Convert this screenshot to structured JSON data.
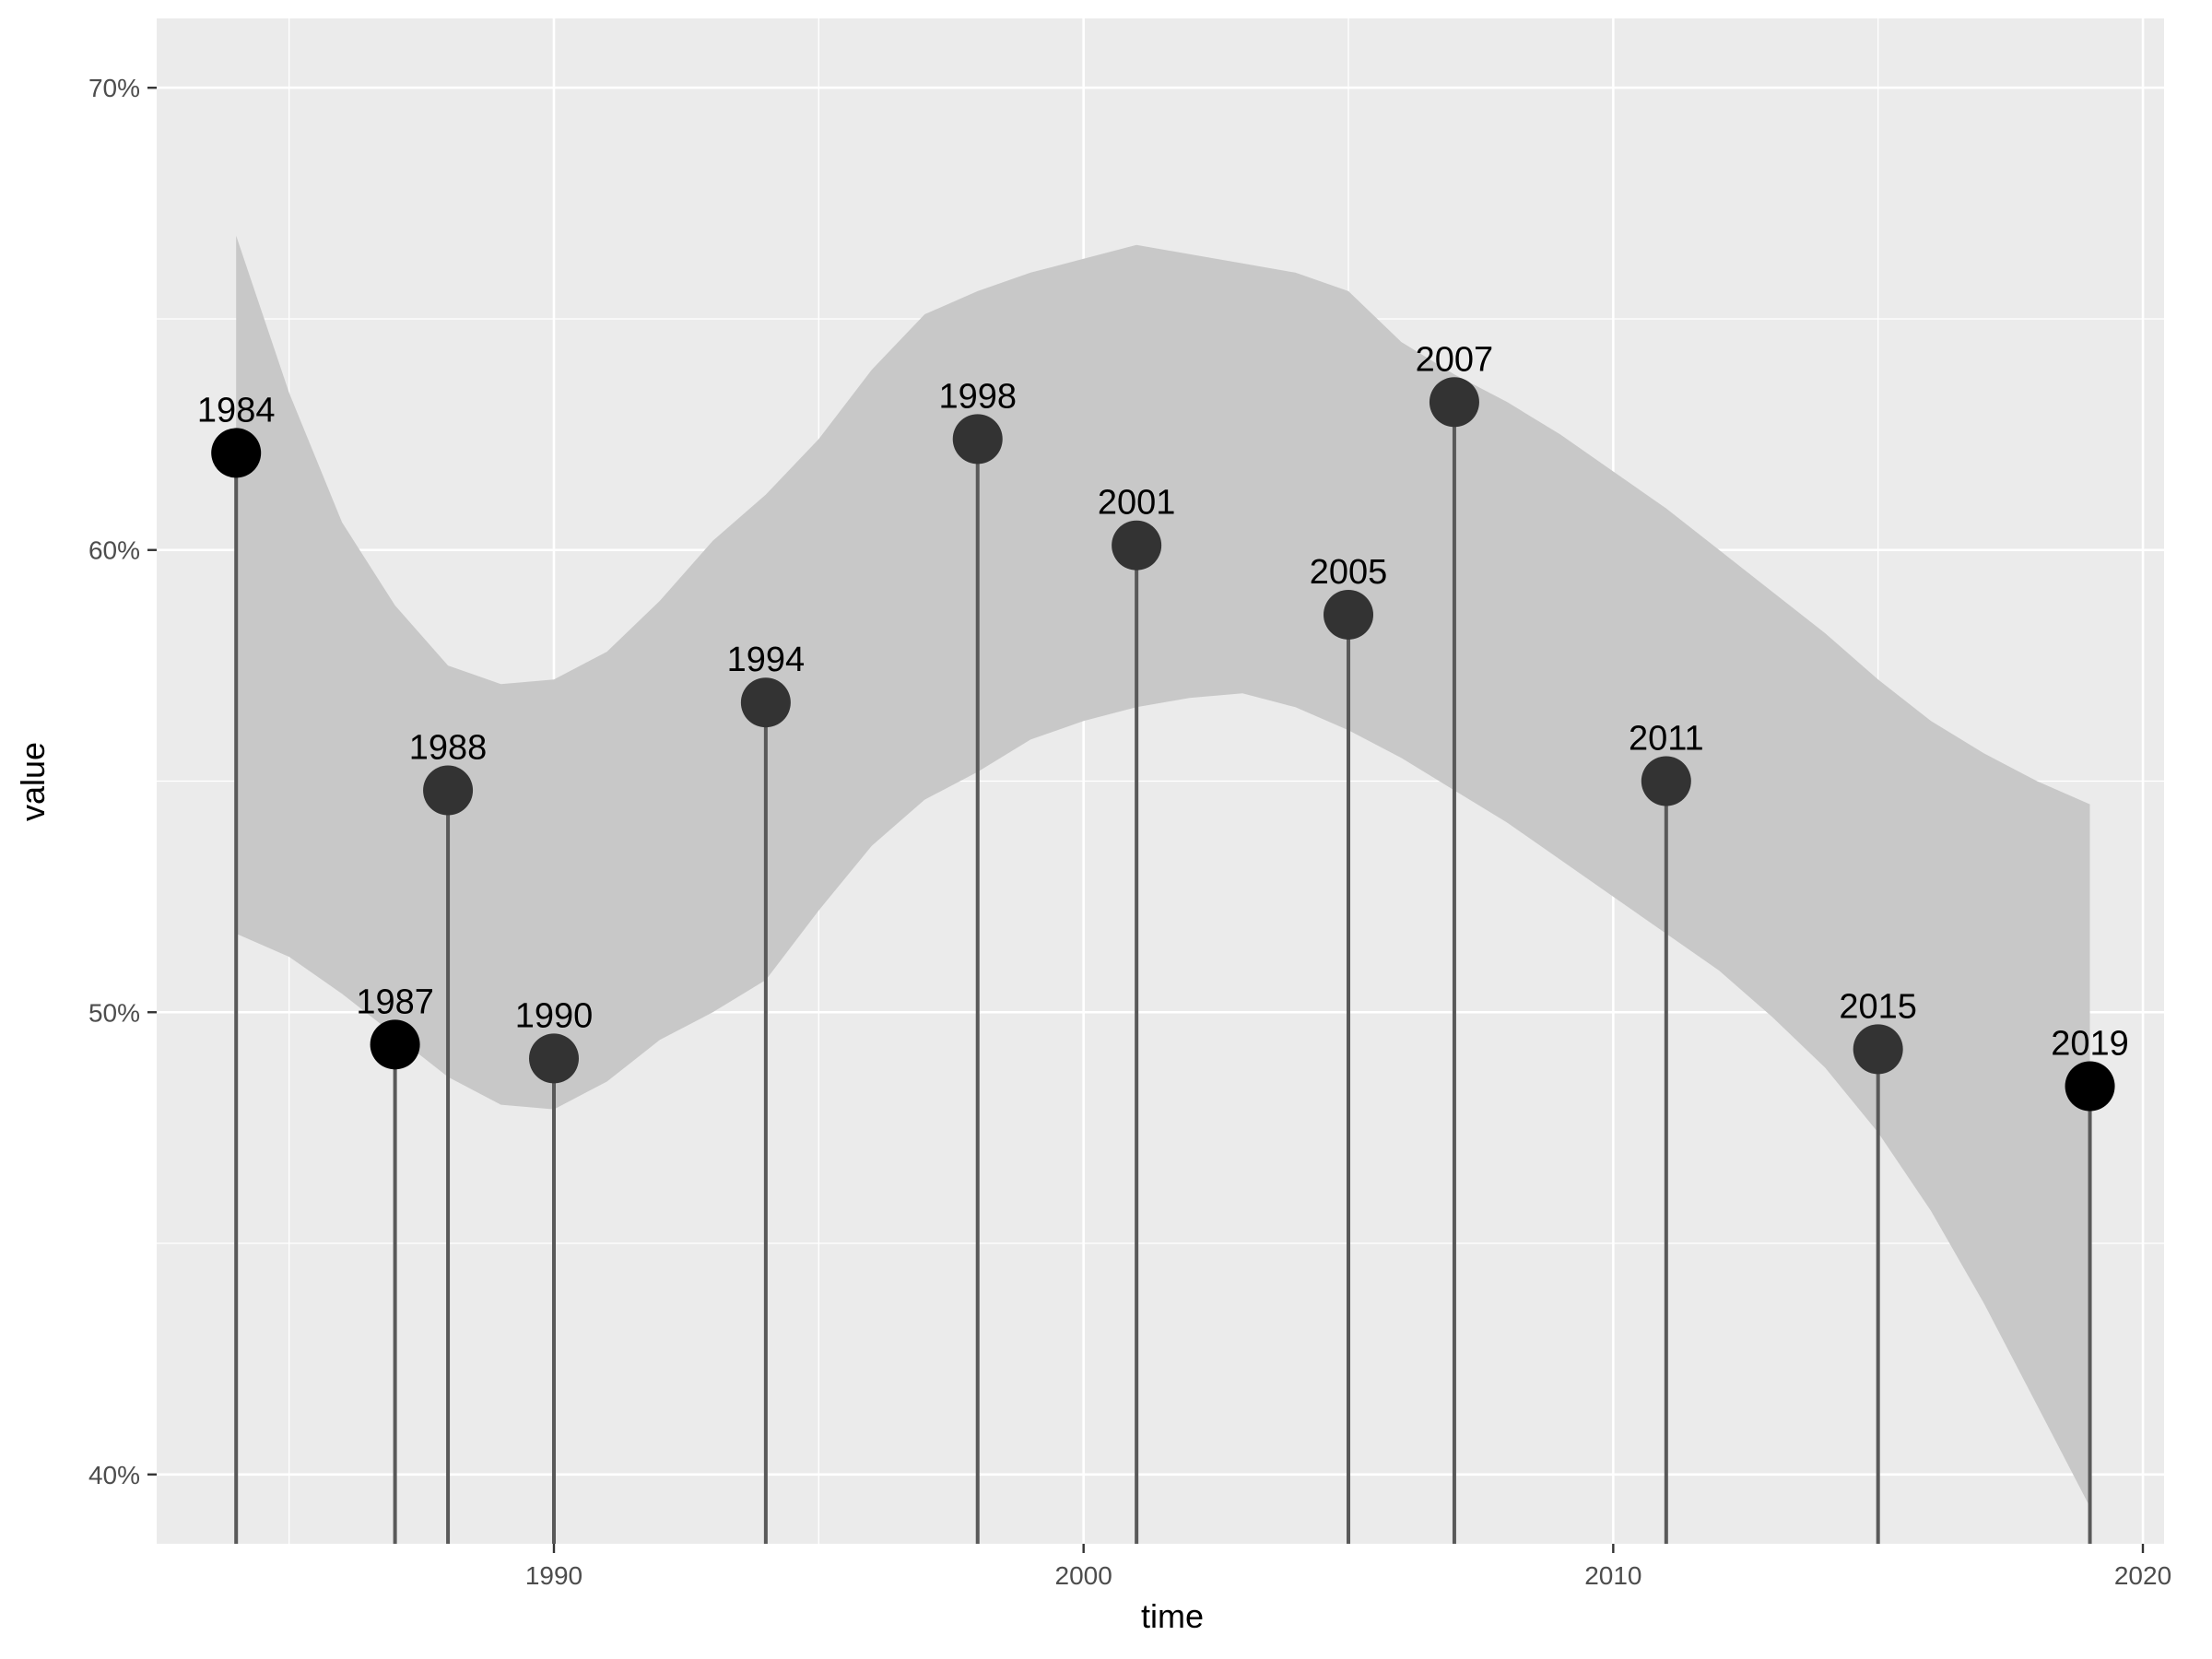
{
  "chart_data": {
    "type": "scatter",
    "xlabel": "time",
    "ylabel": "value",
    "xlim": [
      1982.5,
      2020.4
    ],
    "ylim": [
      38.5,
      71.5
    ],
    "x_ticks": [
      1990,
      2000,
      2010,
      2020
    ],
    "x_tick_labels": [
      "1990",
      "2000",
      "2010",
      "2020"
    ],
    "y_ticks": [
      40,
      50,
      60,
      70
    ],
    "y_tick_labels": [
      "40%",
      "50%",
      "60%",
      "70%"
    ],
    "grid": true,
    "background": "#EBEBEB",
    "band_color": "#C8C8C8",
    "stem_color": "#595959",
    "point_color": "#333333",
    "points": [
      {
        "x": 1984,
        "y": 62.1,
        "label": "1984",
        "color": "#000000"
      },
      {
        "x": 1987,
        "y": 49.3,
        "label": "1987",
        "color": "#000000"
      },
      {
        "x": 1988,
        "y": 54.8,
        "label": "1988"
      },
      {
        "x": 1990,
        "y": 49.0,
        "label": "1990"
      },
      {
        "x": 1994,
        "y": 56.7,
        "label": "1994"
      },
      {
        "x": 1998,
        "y": 62.4,
        "label": "1998"
      },
      {
        "x": 2001,
        "y": 60.1,
        "label": "2001"
      },
      {
        "x": 2005,
        "y": 58.6,
        "label": "2005"
      },
      {
        "x": 2007,
        "y": 63.2,
        "label": "2007"
      },
      {
        "x": 2011,
        "y": 55.0,
        "label": "2011"
      },
      {
        "x": 2015,
        "y": 49.2,
        "label": "2015"
      },
      {
        "x": 2019,
        "y": 48.4,
        "label": "2019",
        "color": "#000000"
      }
    ],
    "confidence_band": [
      {
        "x": 1984,
        "lower": 51.7,
        "upper": 66.8
      },
      {
        "x": 1985,
        "lower": 51.2,
        "upper": 63.4
      },
      {
        "x": 1986,
        "lower": 50.4,
        "upper": 60.6
      },
      {
        "x": 1987,
        "lower": 49.5,
        "upper": 58.8
      },
      {
        "x": 1988,
        "lower": 48.6,
        "upper": 57.5
      },
      {
        "x": 1989,
        "lower": 48.0,
        "upper": 57.1
      },
      {
        "x": 1990,
        "lower": 47.9,
        "upper": 57.2
      },
      {
        "x": 1991,
        "lower": 48.5,
        "upper": 57.8
      },
      {
        "x": 1992,
        "lower": 49.4,
        "upper": 58.9
      },
      {
        "x": 1993,
        "lower": 50.0,
        "upper": 60.2
      },
      {
        "x": 1994,
        "lower": 50.7,
        "upper": 61.2
      },
      {
        "x": 1995,
        "lower": 52.2,
        "upper": 62.4
      },
      {
        "x": 1996,
        "lower": 53.6,
        "upper": 63.9
      },
      {
        "x": 1997,
        "lower": 54.6,
        "upper": 65.1
      },
      {
        "x": 1998,
        "lower": 55.2,
        "upper": 65.6
      },
      {
        "x": 1999,
        "lower": 55.9,
        "upper": 66.0
      },
      {
        "x": 2000,
        "lower": 56.3,
        "upper": 66.3
      },
      {
        "x": 2001,
        "lower": 56.6,
        "upper": 66.6
      },
      {
        "x": 2002,
        "lower": 56.8,
        "upper": 66.4
      },
      {
        "x": 2003,
        "lower": 56.9,
        "upper": 66.2
      },
      {
        "x": 2004,
        "lower": 56.6,
        "upper": 66.0
      },
      {
        "x": 2005,
        "lower": 56.1,
        "upper": 65.6
      },
      {
        "x": 2006,
        "lower": 55.5,
        "upper": 64.5
      },
      {
        "x": 2007,
        "lower": 54.8,
        "upper": 63.8
      },
      {
        "x": 2008,
        "lower": 54.1,
        "upper": 63.2
      },
      {
        "x": 2009,
        "lower": 53.3,
        "upper": 62.5
      },
      {
        "x": 2010,
        "lower": 52.5,
        "upper": 61.7
      },
      {
        "x": 2011,
        "lower": 51.7,
        "upper": 60.9
      },
      {
        "x": 2012,
        "lower": 50.9,
        "upper": 60.0
      },
      {
        "x": 2013,
        "lower": 49.9,
        "upper": 59.1
      },
      {
        "x": 2014,
        "lower": 48.8,
        "upper": 58.2
      },
      {
        "x": 2015,
        "lower": 47.4,
        "upper": 57.2
      },
      {
        "x": 2016,
        "lower": 45.7,
        "upper": 56.3
      },
      {
        "x": 2017,
        "lower": 43.7,
        "upper": 55.6
      },
      {
        "x": 2018,
        "lower": 41.5,
        "upper": 55.0
      },
      {
        "x": 2019,
        "lower": 39.3,
        "upper": 54.5
      }
    ]
  }
}
